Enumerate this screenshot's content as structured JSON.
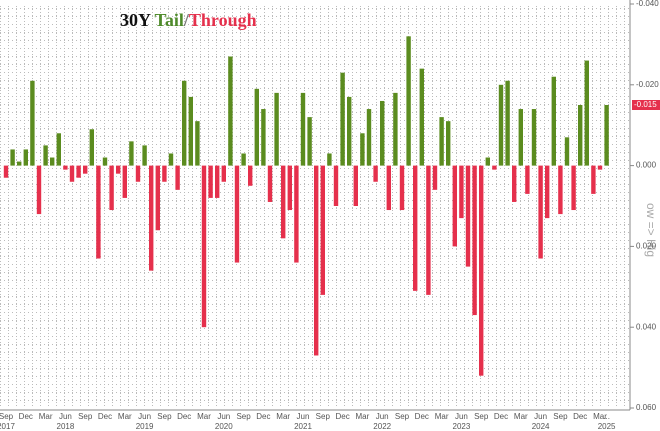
{
  "chart_data": {
    "type": "bar",
    "title_parts": [
      "30Y",
      "Tail",
      "/",
      "Through"
    ],
    "y_axis_label": "ow => Hig",
    "categories": [
      "Sep",
      null,
      null,
      "Dec",
      null,
      null,
      "Mar",
      null,
      null,
      "Jun",
      null,
      null,
      "Sep",
      null,
      null,
      "Dec",
      null,
      null,
      "Mar",
      null,
      null,
      "Jun",
      null,
      null,
      "Sep",
      null,
      null,
      "Dec",
      null,
      null,
      "Mar",
      null,
      null,
      "Jun",
      null,
      null,
      "Sep",
      null,
      null,
      "Dec",
      null,
      null,
      "Mar",
      null,
      null,
      "Jun",
      null,
      null,
      "Sep",
      null,
      null,
      "Dec",
      null,
      null,
      "Mar",
      null,
      null,
      "Jun",
      null,
      null,
      "Sep",
      null,
      null,
      "Dec",
      null,
      null,
      "Mar",
      null,
      null,
      "Jun",
      null,
      null,
      "Sep",
      null,
      null,
      "Dec",
      null,
      null,
      "Mar",
      null,
      null,
      "Jun",
      null,
      null,
      "Sep",
      null,
      null,
      "Dec",
      null,
      null,
      "Mar",
      "..."
    ],
    "years": [
      "2017",
      null,
      null,
      null,
      null,
      null,
      null,
      null,
      null,
      "2018",
      null,
      null,
      null,
      null,
      null,
      null,
      null,
      null,
      null,
      null,
      null,
      "2019",
      null,
      null,
      null,
      null,
      null,
      null,
      null,
      null,
      null,
      null,
      null,
      "2020",
      null,
      null,
      null,
      null,
      null,
      null,
      null,
      null,
      null,
      null,
      null,
      "2021",
      null,
      null,
      null,
      null,
      null,
      null,
      null,
      null,
      null,
      null,
      null,
      "2022",
      null,
      null,
      null,
      null,
      null,
      null,
      null,
      null,
      null,
      null,
      null,
      "2023",
      null,
      null,
      null,
      null,
      null,
      null,
      null,
      null,
      null,
      null,
      null,
      "2024",
      null,
      null,
      null,
      null,
      null,
      null,
      null,
      null,
      null,
      "2025"
    ],
    "values": [
      0.003,
      -0.004,
      -0.001,
      -0.004,
      -0.021,
      0.012,
      -0.005,
      -0.002,
      -0.008,
      0.001,
      0.004,
      0.003,
      0.002,
      -0.009,
      0.023,
      -0.002,
      0.011,
      0.002,
      0.008,
      -0.006,
      0.004,
      -0.005,
      0.026,
      0.016,
      0.004,
      -0.003,
      0.006,
      -0.021,
      -0.017,
      -0.011,
      0.04,
      0.008,
      0.008,
      0.004,
      -0.027,
      0.024,
      -0.003,
      0.005,
      -0.019,
      -0.014,
      0.009,
      -0.018,
      0.018,
      0.011,
      0.024,
      -0.018,
      -0.012,
      0.047,
      0.032,
      -0.003,
      0.01,
      -0.023,
      -0.017,
      0.01,
      -0.008,
      -0.014,
      0.004,
      -0.016,
      0.011,
      -0.018,
      0.011,
      -0.032,
      0.031,
      -0.024,
      0.032,
      0.006,
      -0.012,
      -0.011,
      0.02,
      0.013,
      0.025,
      0.037,
      0.052,
      -0.002,
      0.001,
      -0.02,
      -0.021,
      0.009,
      -0.014,
      0.007,
      -0.014,
      0.023,
      0.013,
      -0.022,
      0.012,
      -0.007,
      0.011,
      -0.015,
      -0.026,
      0.007,
      0.001,
      -0.015
    ],
    "negative_color": "#5b8c1f",
    "positive_color": "#e5304c",
    "ylim": [
      -0.04,
      0.06
    ],
    "inverted": true,
    "yticks": [
      {
        "value": -0.04,
        "label": "-0.040"
      },
      {
        "value": -0.02,
        "label": "-0.020"
      },
      {
        "value": 0,
        "label": "0.000"
      },
      {
        "value": 0.02,
        "label": "0.020"
      },
      {
        "value": 0.04,
        "label": "0.040"
      },
      {
        "value": 0.06,
        "label": "0.060"
      }
    ],
    "current_label": {
      "value": -0.015,
      "label": "-0.015"
    },
    "grid": true
  }
}
